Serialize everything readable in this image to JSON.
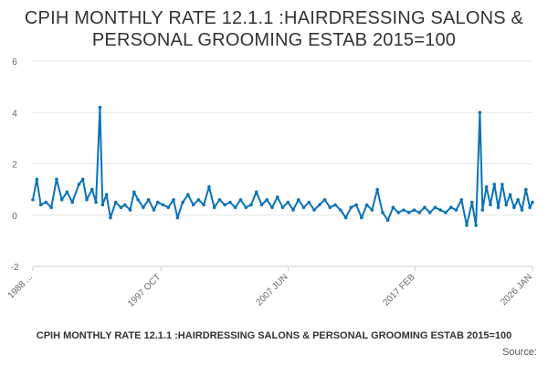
{
  "header": {
    "title_line1": "CPIH MONTHLY RATE 12.1.1 :HAIRDRESSING SALONS &",
    "title_line2": "PERSONAL GROOMING ESTAB 2015=100"
  },
  "footer": {
    "caption": "CPIH MONTHLY RATE 12.1.1 :HAIRDRESSING SALONS & PERSONAL GROOMING ESTAB 2015=100",
    "source": "Source:"
  },
  "colors": {
    "series": "#0a72b8",
    "grid": "#e6e6e6",
    "axis": "#cccccc"
  },
  "chart_data": {
    "type": "line",
    "title": "CPIH MONTHLY RATE 12.1.1 :HAIRDRESSING SALONS & PERSONAL GROOMING ESTAB 2015=100",
    "xlabel": "",
    "ylabel": "",
    "ylim": [
      -2,
      6
    ],
    "yticks": [
      -2,
      0,
      2,
      4,
      6
    ],
    "grid": true,
    "legend": "none",
    "x_start": 1988.0,
    "x_end": 2026.0,
    "x_ticks": [
      {
        "label": "1988 ...",
        "x": 1988.0
      },
      {
        "label": "1997 OCT",
        "x": 1997.75
      },
      {
        "label": "2007 JUN",
        "x": 2007.42
      },
      {
        "label": "2017 FEB",
        "x": 2017.08
      },
      {
        "label": "2026 JAN",
        "x": 2026.0
      }
    ],
    "series": [
      {
        "name": "CPIH monthly rate 12.1.1",
        "points": [
          [
            1988.0,
            0.6
          ],
          [
            1988.3,
            1.4
          ],
          [
            1988.6,
            0.4
          ],
          [
            1989.0,
            0.5
          ],
          [
            1989.4,
            0.3
          ],
          [
            1989.8,
            1.4
          ],
          [
            1990.2,
            0.6
          ],
          [
            1990.6,
            0.9
          ],
          [
            1991.0,
            0.5
          ],
          [
            1991.5,
            1.2
          ],
          [
            1991.8,
            1.4
          ],
          [
            1992.1,
            0.6
          ],
          [
            1992.5,
            1.0
          ],
          [
            1992.8,
            0.5
          ],
          [
            1993.1,
            4.2
          ],
          [
            1993.3,
            0.4
          ],
          [
            1993.6,
            0.8
          ],
          [
            1993.9,
            -0.1
          ],
          [
            1994.3,
            0.5
          ],
          [
            1994.7,
            0.3
          ],
          [
            1995.0,
            0.4
          ],
          [
            1995.4,
            0.2
          ],
          [
            1995.7,
            0.9
          ],
          [
            1996.0,
            0.6
          ],
          [
            1996.4,
            0.3
          ],
          [
            1996.8,
            0.6
          ],
          [
            1997.2,
            0.2
          ],
          [
            1997.5,
            0.5
          ],
          [
            1997.9,
            0.4
          ],
          [
            1998.3,
            0.3
          ],
          [
            1998.7,
            0.6
          ],
          [
            1999.0,
            -0.1
          ],
          [
            1999.4,
            0.5
          ],
          [
            1999.8,
            0.8
          ],
          [
            2000.2,
            0.4
          ],
          [
            2000.6,
            0.6
          ],
          [
            2001.0,
            0.4
          ],
          [
            2001.4,
            1.1
          ],
          [
            2001.8,
            0.3
          ],
          [
            2002.2,
            0.6
          ],
          [
            2002.6,
            0.4
          ],
          [
            2003.0,
            0.5
          ],
          [
            2003.4,
            0.3
          ],
          [
            2003.8,
            0.6
          ],
          [
            2004.2,
            0.3
          ],
          [
            2004.6,
            0.4
          ],
          [
            2005.0,
            0.9
          ],
          [
            2005.4,
            0.4
          ],
          [
            2005.8,
            0.6
          ],
          [
            2006.2,
            0.3
          ],
          [
            2006.6,
            0.7
          ],
          [
            2007.0,
            0.3
          ],
          [
            2007.4,
            0.5
          ],
          [
            2007.8,
            0.2
          ],
          [
            2008.2,
            0.6
          ],
          [
            2008.6,
            0.3
          ],
          [
            2009.0,
            0.5
          ],
          [
            2009.4,
            0.2
          ],
          [
            2009.8,
            0.4
          ],
          [
            2010.2,
            0.6
          ],
          [
            2010.6,
            0.3
          ],
          [
            2011.0,
            0.4
          ],
          [
            2011.4,
            0.2
          ],
          [
            2011.8,
            -0.1
          ],
          [
            2012.2,
            0.3
          ],
          [
            2012.6,
            0.4
          ],
          [
            2013.0,
            -0.1
          ],
          [
            2013.4,
            0.4
          ],
          [
            2013.8,
            0.2
          ],
          [
            2014.2,
            1.0
          ],
          [
            2014.6,
            0.1
          ],
          [
            2015.0,
            -0.2
          ],
          [
            2015.4,
            0.3
          ],
          [
            2015.8,
            0.1
          ],
          [
            2016.2,
            0.2
          ],
          [
            2016.6,
            0.1
          ],
          [
            2017.0,
            0.2
          ],
          [
            2017.4,
            0.1
          ],
          [
            2017.8,
            0.3
          ],
          [
            2018.2,
            0.1
          ],
          [
            2018.6,
            0.3
          ],
          [
            2019.0,
            0.2
          ],
          [
            2019.4,
            0.1
          ],
          [
            2019.8,
            0.3
          ],
          [
            2020.2,
            0.2
          ],
          [
            2020.6,
            0.6
          ],
          [
            2021.0,
            -0.4
          ],
          [
            2021.4,
            0.5
          ],
          [
            2021.7,
            -0.4
          ],
          [
            2022.0,
            4.0
          ],
          [
            2022.2,
            0.2
          ],
          [
            2022.5,
            1.1
          ],
          [
            2022.8,
            0.4
          ],
          [
            2023.1,
            1.2
          ],
          [
            2023.4,
            0.3
          ],
          [
            2023.7,
            1.2
          ],
          [
            2024.0,
            0.4
          ],
          [
            2024.3,
            0.8
          ],
          [
            2024.6,
            0.3
          ],
          [
            2024.9,
            0.6
          ],
          [
            2025.2,
            0.2
          ],
          [
            2025.5,
            1.0
          ],
          [
            2025.8,
            0.3
          ],
          [
            2026.0,
            0.5
          ]
        ]
      }
    ]
  }
}
